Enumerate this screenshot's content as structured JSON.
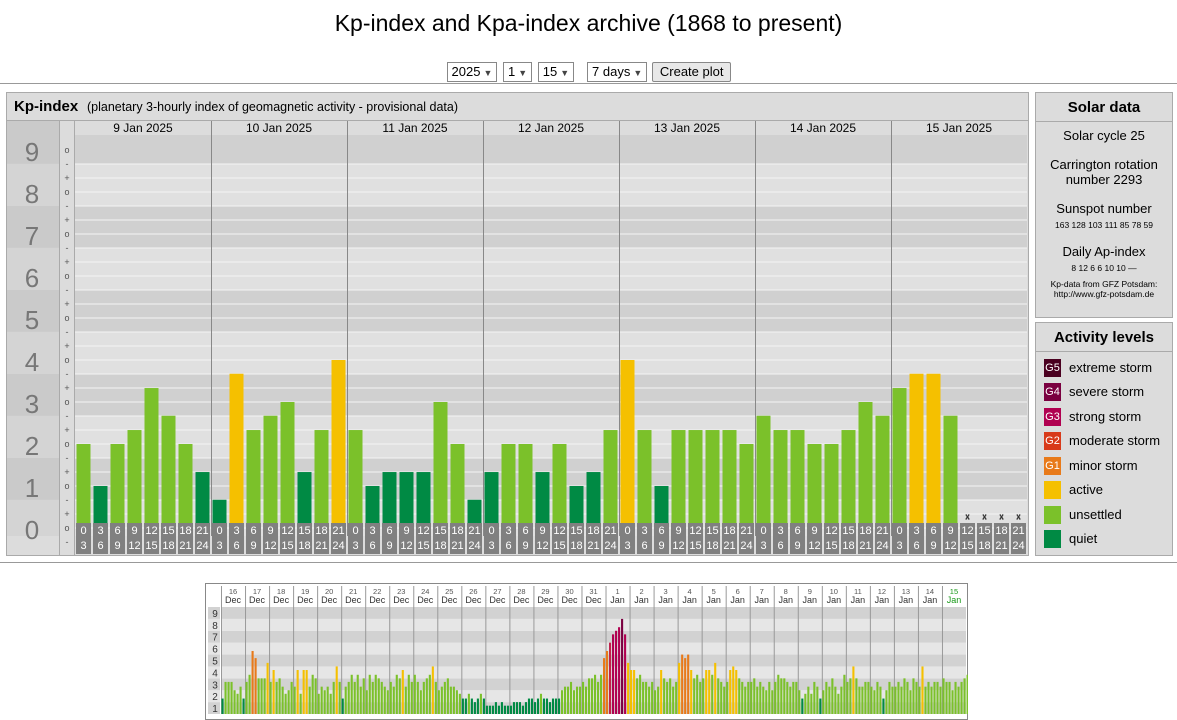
{
  "page": {
    "title": "Kp-index and Kpa-index archive (1868 to present)"
  },
  "controls": {
    "year": "2025",
    "month": "1",
    "day": "15",
    "span": "7 days",
    "create_label": "Create plot"
  },
  "kp_panel": {
    "title": "Kp-index",
    "subtitle": "(planetary 3-hourly index of geomagnetic activity - provisional data)"
  },
  "solar": {
    "heading": "Solar data",
    "cycle": "Solar cycle 25",
    "carrington_1": "Carrington rotation",
    "carrington_2": "number 2293",
    "sunspot_label": "Sunspot number",
    "sunspot_values": "163 128 103 111 85 78 59",
    "ap_label": "Daily Ap-index",
    "ap_values": "8 12 6 6 10 10 —",
    "source_1": "Kp-data from GFZ Potsdam:",
    "source_2": "http://www.gfz-potsdam.de"
  },
  "activity": {
    "heading": "Activity levels",
    "levels": [
      {
        "badge": "G5",
        "label": "extreme storm",
        "color": "#4a0020"
      },
      {
        "badge": "G4",
        "label": "severe storm",
        "color": "#7a0040"
      },
      {
        "badge": "G3",
        "label": "strong storm",
        "color": "#b00050"
      },
      {
        "badge": "G2",
        "label": "moderate storm",
        "color": "#d83a1a"
      },
      {
        "badge": "G1",
        "label": "minor storm",
        "color": "#e87a1a"
      },
      {
        "badge": "",
        "label": "active",
        "color": "#f5c000"
      },
      {
        "badge": "",
        "label": "unsettled",
        "color": "#7bc12a"
      },
      {
        "badge": "",
        "label": "quiet",
        "color": "#008a44"
      }
    ]
  },
  "chart_data": [
    {
      "type": "bar",
      "title": "Kp-index",
      "ylim": [
        0,
        9
      ],
      "y_ticks": [
        "0",
        "1",
        "2",
        "3",
        "4",
        "5",
        "6",
        "7",
        "8",
        "9"
      ],
      "minor_labels": [
        "+",
        "o",
        "-"
      ],
      "days": [
        "9 Jan 2025",
        "10 Jan 2025",
        "11 Jan 2025",
        "12 Jan 2025",
        "13 Jan 2025",
        "14 Jan 2025",
        "15 Jan 2025"
      ],
      "hour_top": [
        "0",
        "3",
        "6",
        "9",
        "12",
        "15",
        "18",
        "21"
      ],
      "hour_bottom": [
        "3",
        "6",
        "9",
        "12",
        "15",
        "18",
        "21",
        "24"
      ],
      "missing_mark": "x",
      "level_colors": {
        "quiet": "#008a44",
        "unsettled": "#7bc12a",
        "active": "#f5c000"
      },
      "values": [
        2,
        1,
        2,
        2.33,
        3.33,
        2.67,
        2,
        1.33,
        0.67,
        3.67,
        2.33,
        2.67,
        3,
        1.33,
        2.33,
        4,
        2.33,
        1,
        1.33,
        1.33,
        1.33,
        3,
        2,
        0.67,
        1.33,
        2,
        2,
        1.33,
        2,
        1,
        1.33,
        2.33,
        4,
        2.33,
        1,
        2.33,
        2.33,
        2.33,
        2.33,
        2,
        2.67,
        2.33,
        2.33,
        2,
        2,
        2.33,
        3,
        2.67,
        3.33,
        3.67,
        3.67,
        2.67,
        null,
        null,
        null,
        null
      ],
      "levels": [
        "u",
        "q",
        "u",
        "u",
        "u",
        "u",
        "u",
        "q",
        "q",
        "a",
        "u",
        "u",
        "u",
        "q",
        "u",
        "a",
        "u",
        "q",
        "q",
        "q",
        "q",
        "u",
        "u",
        "q",
        "q",
        "u",
        "u",
        "q",
        "u",
        "q",
        "q",
        "u",
        "a",
        "u",
        "q",
        "u",
        "u",
        "u",
        "u",
        "u",
        "u",
        "u",
        "u",
        "u",
        "u",
        "u",
        "u",
        "u",
        "u",
        "a",
        "a",
        "u",
        null,
        null,
        null,
        null
      ]
    },
    {
      "type": "bar",
      "title": "",
      "ylim": [
        0,
        9
      ],
      "y_ticks": [
        "1",
        "2",
        "3",
        "4",
        "5",
        "6",
        "7",
        "8",
        "9"
      ],
      "days": [
        [
          "16",
          "Dec"
        ],
        [
          "17",
          "Dec"
        ],
        [
          "18",
          "Dec"
        ],
        [
          "19",
          "Dec"
        ],
        [
          "20",
          "Dec"
        ],
        [
          "21",
          "Dec"
        ],
        [
          "22",
          "Dec"
        ],
        [
          "23",
          "Dec"
        ],
        [
          "24",
          "Dec"
        ],
        [
          "25",
          "Dec"
        ],
        [
          "26",
          "Dec"
        ],
        [
          "27",
          "Dec"
        ],
        [
          "28",
          "Dec"
        ],
        [
          "29",
          "Dec"
        ],
        [
          "30",
          "Dec"
        ],
        [
          "31",
          "Dec"
        ],
        [
          "1",
          "Jan"
        ],
        [
          "2",
          "Jan"
        ],
        [
          "3",
          "Jan"
        ],
        [
          "4",
          "Jan"
        ],
        [
          "5",
          "Jan"
        ],
        [
          "6",
          "Jan"
        ],
        [
          "7",
          "Jan"
        ],
        [
          "8",
          "Jan"
        ],
        [
          "9",
          "Jan"
        ],
        [
          "10",
          "Jan"
        ],
        [
          "11",
          "Jan"
        ],
        [
          "12",
          "Jan"
        ],
        [
          "13",
          "Jan"
        ],
        [
          "14",
          "Jan"
        ],
        [
          "15",
          "Jan"
        ]
      ],
      "values": [
        1.3,
        2.7,
        2.7,
        2.7,
        2,
        1.7,
        2.3,
        1.3,
        2.7,
        3.3,
        5.3,
        4.7,
        3,
        3,
        3,
        4.3,
        2.7,
        3.7,
        2.7,
        3,
        2.3,
        1.7,
        2,
        2.7,
        2.3,
        3.7,
        1.7,
        3.7,
        3.7,
        2.3,
        3.3,
        3,
        1.7,
        2.3,
        2,
        2.3,
        1.7,
        2.7,
        4,
        2.7,
        1.3,
        2.3,
        2.7,
        3.3,
        2.7,
        3.3,
        2.3,
        3,
        2,
        3.3,
        2.7,
        3.3,
        3,
        2.7,
        2.3,
        2,
        2.7,
        2.3,
        3.3,
        3,
        3.7,
        2.3,
        3.3,
        2.7,
        3.3,
        2.7,
        2,
        2.7,
        3,
        3.3,
        4,
        2.7,
        2,
        2.3,
        2.7,
        3,
        2.3,
        2.3,
        2,
        1.7,
        1.3,
        1.3,
        1.7,
        1.3,
        1,
        1.3,
        1.7,
        1.3,
        0.7,
        0.7,
        0.7,
        1,
        0.7,
        1,
        0.7,
        0.7,
        0.7,
        1,
        1,
        1,
        0.7,
        1,
        1.3,
        1.3,
        1,
        1.3,
        1.7,
        1.3,
        1.3,
        1,
        1.3,
        1.3,
        1.3,
        2,
        2.3,
        2.3,
        2.7,
        2,
        2.3,
        2.3,
        2.7,
        2.3,
        3,
        3,
        3.3,
        2.7,
        3.3,
        4.7,
        5.3,
        6,
        6.7,
        7,
        7.3,
        8,
        6.7,
        4.3,
        3.7,
        3.7,
        3,
        3.3,
        2.7,
        2.7,
        2.3,
        2.7,
        2,
        2.3,
        3.7,
        3,
        2.7,
        3,
        2.3,
        2.7,
        4.3,
        5,
        4.7,
        5,
        3.7,
        3,
        3.3,
        2.7,
        3,
        3.7,
        3.7,
        3.3,
        4.3,
        3,
        2.7,
        2.3,
        2.7,
        3.7,
        4,
        3.7,
        3,
        2.7,
        2.3,
        2.7,
        2.7,
        3,
        2.3,
        2.7,
        2.3,
        2,
        2.7,
        2,
        2.7,
        3.3,
        3,
        3,
        2.7,
        2.3,
        2.7,
        2.7,
        2,
        1.3,
        1.7,
        2.3,
        1.7,
        2.7,
        2.3,
        1.3,
        2,
        2.7,
        2.3,
        3,
        2.3,
        1.7,
        2.3,
        3.3,
        2.7,
        3,
        4,
        3,
        2.3,
        2.3,
        2.7,
        2.7,
        2.3,
        2,
        2.7,
        2.3,
        1.3,
        2,
        2.7,
        2.3,
        2.3,
        2.7,
        2.3,
        3,
        2.7,
        2,
        3,
        2.7,
        2.3,
        4,
        2.3,
        2.7,
        2.3,
        2.7,
        2.7,
        2.3,
        3,
        2.7,
        2.7,
        2,
        2.7,
        2.3,
        2.7,
        3,
        3.3,
        3.7,
        3.7,
        3.7,
        2.7
      ]
    }
  ]
}
